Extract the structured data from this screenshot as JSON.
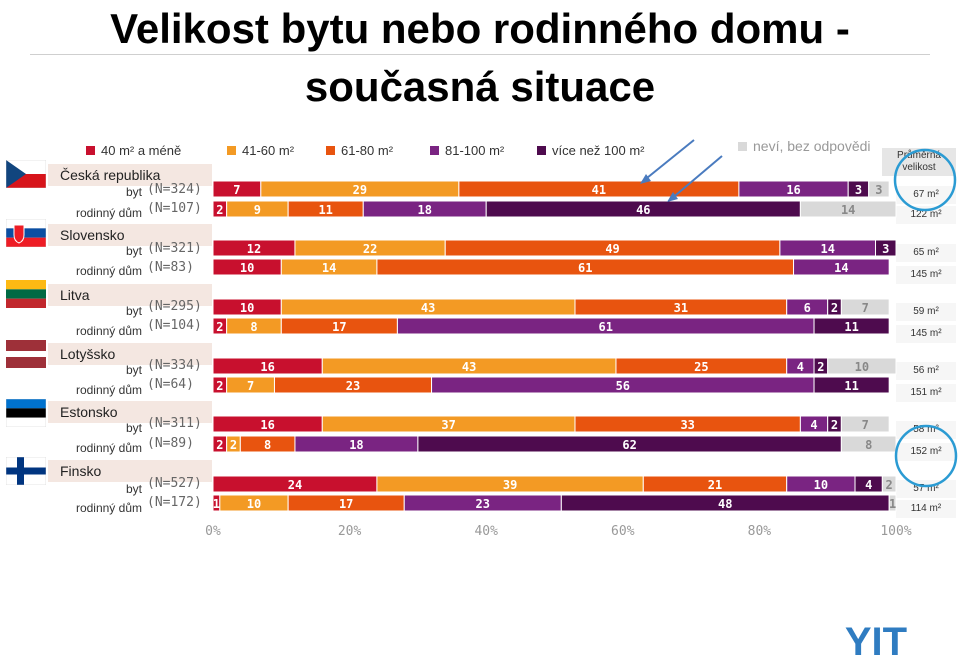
{
  "page": {
    "title_line1": "Velikost bytu nebo rodinného domu -",
    "title_line2": "současná situace",
    "avg_header": "Průměrná velikost",
    "logo_text": "YIT"
  },
  "legend": [
    {
      "label": "40 m² a méně",
      "color": "#c8102e"
    },
    {
      "label": "41-60 m²",
      "color": "#f39a24"
    },
    {
      "label": "61-80 m²",
      "color": "#e8540f"
    },
    {
      "label": "81-100 m²",
      "color": "#7a2482"
    },
    {
      "label": "více než 100 m²",
      "color": "#4e0b4e"
    },
    {
      "label": "neví, bez odpovědi",
      "color": "#d9d9d9"
    }
  ],
  "chart_data": {
    "type": "bar",
    "orientation": "horizontal",
    "stacked": true,
    "xlim": [
      0,
      100
    ],
    "x_ticks": [
      "0%",
      "20%",
      "40%",
      "60%",
      "80%",
      "100%"
    ],
    "series_names": [
      "40 m² a méně",
      "41-60 m²",
      "61-80 m²",
      "81-100 m²",
      "více než 100 m²",
      "neví, bez odpovědi"
    ],
    "countries": [
      {
        "name": "Česká republika",
        "rows": [
          {
            "type": "byt",
            "n": "(N=324)",
            "values": [
              7,
              29,
              41,
              16,
              3,
              3
            ],
            "avg": "67 m²"
          },
          {
            "type": "rodinný dům",
            "n": "(N=107)",
            "values": [
              2,
              9,
              11,
              18,
              46,
              14
            ],
            "avg": "122 m²"
          }
        ]
      },
      {
        "name": "Slovensko",
        "rows": [
          {
            "type": "byt",
            "n": "(N=321)",
            "values": [
              12,
              22,
              49,
              14,
              3,
              0
            ],
            "avg": "65 m²"
          },
          {
            "type": "rodinný dům",
            "n": "(N=83)",
            "values": [
              10,
              14,
              61,
              14,
              0,
              0
            ],
            "avg": "145 m²"
          }
        ]
      },
      {
        "name": "Litva",
        "rows": [
          {
            "type": "byt",
            "n": "(N=295)",
            "values": [
              10,
              43,
              31,
              6,
              2,
              7
            ],
            "avg": "59 m²"
          },
          {
            "type": "rodinný dům",
            "n": "(N=104)",
            "values": [
              2,
              8,
              17,
              61,
              11,
              0
            ],
            "avg": "145 m²"
          }
        ]
      },
      {
        "name": "Lotyšsko",
        "rows": [
          {
            "type": "byt",
            "n": "(N=334)",
            "values": [
              16,
              43,
              25,
              4,
              2,
              10
            ],
            "avg": "56 m²"
          },
          {
            "type": "rodinný dům",
            "n": "(N=64)",
            "values": [
              2,
              7,
              23,
              56,
              11,
              0
            ],
            "avg": "151 m²"
          }
        ]
      },
      {
        "name": "Estonsko",
        "rows": [
          {
            "type": "byt",
            "n": "(N=311)",
            "values": [
              16,
              37,
              33,
              4,
              2,
              7
            ],
            "avg": "58 m²"
          },
          {
            "type": "rodinný dům",
            "n": "(N=89)",
            "values": [
              2,
              2,
              8,
              18,
              62,
              8
            ],
            "avg": "152 m²"
          }
        ]
      },
      {
        "name": "Finsko",
        "rows": [
          {
            "type": "byt",
            "n": "(N=527)",
            "values": [
              24,
              39,
              21,
              10,
              4,
              2
            ],
            "avg": "57 m²"
          },
          {
            "type": "rodinný dům",
            "n": "(N=172)",
            "values": [
              1,
              10,
              17,
              23,
              48,
              1
            ],
            "avg": "114 m²"
          }
        ]
      }
    ]
  }
}
